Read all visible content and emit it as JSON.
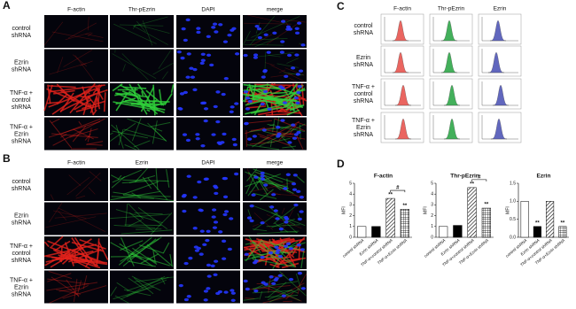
{
  "panels": {
    "A": {
      "label": "A",
      "columns": [
        "F-actin",
        "Thr-pEzrin",
        "DAPI",
        "merge"
      ],
      "rows": [
        [
          "control",
          "shRNA"
        ],
        [
          "Ezrin",
          "shRNA"
        ],
        [
          "TNF-α +",
          "control",
          "shRNA"
        ],
        [
          "TNF-α +",
          "Ezrin",
          "shRNA"
        ]
      ]
    },
    "B": {
      "label": "B",
      "columns": [
        "F-actin",
        "Ezrin",
        "DAPI",
        "merge"
      ],
      "rows": [
        [
          "control",
          "shRNA"
        ],
        [
          "Ezrin",
          "shRNA"
        ],
        [
          "TNF-α +",
          "control",
          "shRNA"
        ],
        [
          "TNF-α +",
          "Ezrin",
          "shRNA"
        ]
      ]
    },
    "C": {
      "label": "C",
      "columns": [
        "F-actin",
        "Thr-pEzrin",
        "Ezrin"
      ],
      "rows": [
        [
          "control",
          "shRNA"
        ],
        [
          "Ezrin",
          "shRNA"
        ],
        [
          "TNF-α +",
          "control",
          "shRNA"
        ],
        [
          "TNF-α +",
          "Ezrin",
          "shRNA"
        ]
      ]
    },
    "D": {
      "label": "D"
    }
  },
  "chart_data": [
    {
      "type": "bar",
      "title": "F-actin",
      "ylabel": "MFI",
      "categories": [
        "control shRNA",
        "Ezrin shRNA",
        "TNF-α+control shRNA",
        "TNF-α+Ezrin shRNA"
      ],
      "values": [
        1.0,
        1.0,
        3.6,
        2.6
      ],
      "fills": [
        "white",
        "black",
        "hatch",
        "grid"
      ],
      "annotations": [
        null,
        null,
        "**",
        "**"
      ],
      "bracket_label": "#",
      "ylim": [
        0,
        5
      ],
      "yticks": [
        0,
        1,
        2,
        3,
        4,
        5
      ]
    },
    {
      "type": "bar",
      "title": "Thr-pEzrin",
      "ylabel": "MFI",
      "categories": [
        "control shRNA",
        "Ezrin shRNA",
        "TNF-α+control shRNA",
        "TNF-α+Ezrin shRNA"
      ],
      "values": [
        1.0,
        1.1,
        4.6,
        2.7
      ],
      "fills": [
        "white",
        "black",
        "hatch",
        "grid"
      ],
      "annotations": [
        null,
        null,
        "**",
        "**"
      ],
      "bracket_label": "#",
      "ylim": [
        0,
        5
      ],
      "yticks": [
        0,
        1,
        2,
        3,
        4,
        5
      ]
    },
    {
      "type": "bar",
      "title": "Ezrin",
      "ylabel": "MFI",
      "categories": [
        "control shRNA",
        "Ezrin shRNA",
        "TNF-α+control shRNA",
        "TNF-α+Ezrin shRNA"
      ],
      "values": [
        1.0,
        0.3,
        1.0,
        0.3
      ],
      "fills": [
        "white",
        "black",
        "hatch",
        "grid"
      ],
      "annotations": [
        null,
        "**",
        null,
        "**"
      ],
      "ylim": [
        0,
        1.5
      ],
      "yticks": [
        {
          "value": 0,
          "label": "0.0"
        },
        0.5,
        {
          "value": 1,
          "label": "1.0"
        },
        1.5
      ]
    }
  ]
}
